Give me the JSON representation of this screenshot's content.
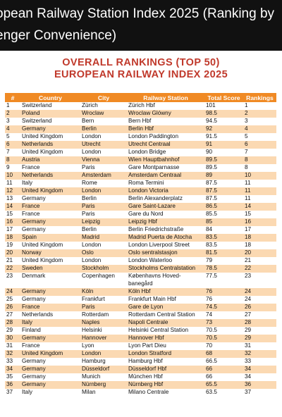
{
  "post": {
    "title_line1": "opean Railway Station Index 2025 (Ranking by",
    "title_line2": "enger Convenience)"
  },
  "card": {
    "title_line1": "OVERALL RANKINGS (TOP 50)",
    "title_line2": "EUROPEAN RAILWAY INDEX 2025"
  },
  "table": {
    "headers": [
      "#",
      "Country",
      "City",
      "Railway Station",
      "Total Score",
      "Rankings"
    ],
    "rows": [
      [
        "1",
        "Switzerland",
        "Zürich",
        "Zürich Hbf",
        "101",
        "1"
      ],
      [
        "2",
        "Poland",
        "Wroclaw",
        "Wroclaw Glówny",
        "98.5",
        "2"
      ],
      [
        "3",
        "Switzerland",
        "Bern",
        "Bern Hbf",
        "94.5",
        "3"
      ],
      [
        "4",
        "Germany",
        "Berlin",
        "Berlin Hbf",
        "92",
        "4"
      ],
      [
        "5",
        "United Kingdom",
        "London",
        "London Paddington",
        "91.5",
        "5"
      ],
      [
        "6",
        "Netherlands",
        "Utrecht",
        "Utrecht Centraal",
        "91",
        "6"
      ],
      [
        "7",
        "United Kingdom",
        "London",
        "London Bridge",
        "90",
        "7"
      ],
      [
        "8",
        "Austria",
        "Vienna",
        "Wien Hauptbahnhof",
        "89.5",
        "8"
      ],
      [
        "9",
        "France",
        "Paris",
        "Gare Montparnasse",
        "89.5",
        "8"
      ],
      [
        "10",
        "Netherlands",
        "Amsterdam",
        "Amsterdam Centraal",
        "89",
        "10"
      ],
      [
        "11",
        "Italy",
        "Rome",
        "Roma Termini",
        "87.5",
        "11"
      ],
      [
        "12",
        "United Kingdom",
        "London",
        "London Victoria",
        "87.5",
        "11"
      ],
      [
        "13",
        "Germany",
        "Berlin",
        "Berlin Alexanderplatz",
        "87.5",
        "11"
      ],
      [
        "14",
        "France",
        "Paris",
        "Gare Saint-Lazare",
        "86.5",
        "14"
      ],
      [
        "15",
        "France",
        "Paris",
        "Gare du Nord",
        "85.5",
        "15"
      ],
      [
        "16",
        "Germany",
        "Leipzig",
        "Leipzig Hbf",
        "85",
        "16"
      ],
      [
        "17",
        "Germany",
        "Berlin",
        "Berlin Friedrichstraße",
        "84",
        "17"
      ],
      [
        "18",
        "Spain",
        "Madrid",
        "Madrid Puerta de Atocha",
        "83.5",
        "18"
      ],
      [
        "19",
        "United Kingdom",
        "London",
        "London Liverpool Street",
        "83.5",
        "18"
      ],
      [
        "20",
        "Norway",
        "Oslo",
        "Oslo sentralstasjon",
        "81.5",
        "20"
      ],
      [
        "21",
        "United Kingdom",
        "London",
        "London Waterloo",
        "79",
        "21"
      ],
      [
        "22",
        "Sweden",
        "Stockholm",
        "Stockholms Centralstation",
        "78.5",
        "22"
      ],
      [
        "23",
        "Denmark",
        "Copenhagen",
        "Københavns Hoved-banegård",
        "77.5",
        "23"
      ],
      [
        "24",
        "Germany",
        "Köln",
        "Köln Hbf",
        "76",
        "24"
      ],
      [
        "25",
        "Germany",
        "Frankfurt",
        "Frankfurt Main Hbf",
        "76",
        "24"
      ],
      [
        "26",
        "France",
        "Paris",
        "Gare de Lyon",
        "74.5",
        "26"
      ],
      [
        "27",
        "Netherlands",
        "Rotterdam",
        "Rotterdam Central Station",
        "74",
        "27"
      ],
      [
        "28",
        "Italy",
        "Naples",
        "Napoli Centrale",
        "73",
        "28"
      ],
      [
        "29",
        "Finland",
        "Helsinki",
        "Helsinki Central Station",
        "70.5",
        "29"
      ],
      [
        "30",
        "Germany",
        "Hannover",
        "Hannover Hbf",
        "70.5",
        "29"
      ],
      [
        "31",
        "France",
        "Lyon",
        "Lyon Part Dieu",
        "70",
        "31"
      ],
      [
        "32",
        "United Kingdom",
        "London",
        "London Stratford",
        "68",
        "32"
      ],
      [
        "33",
        "Germany",
        "Hamburg",
        "Hamburg Hbf",
        "66.5",
        "33"
      ],
      [
        "34",
        "Germany",
        "Düsseldorf",
        "Düsseldorf Hbf",
        "66",
        "34"
      ],
      [
        "35",
        "Germany",
        "Munich",
        "München Hbf",
        "66",
        "34"
      ],
      [
        "36",
        "Germany",
        "Nürnberg",
        "Nürnberg Hbf",
        "65.5",
        "36"
      ],
      [
        "37",
        "Italy",
        "Milan",
        "Milano Centrale",
        "63.5",
        "37"
      ]
    ]
  }
}
